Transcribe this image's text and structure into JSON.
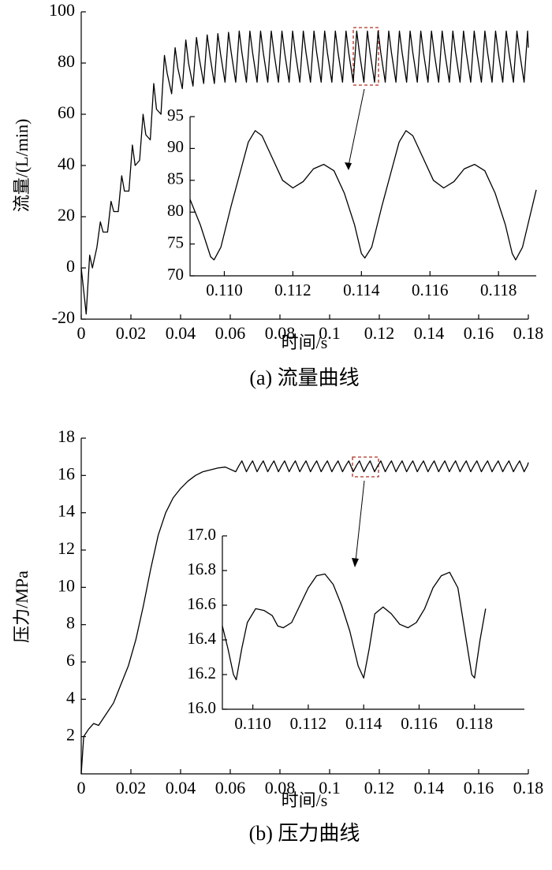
{
  "chart_data": [
    {
      "type": "line",
      "ylabel": "流量/(L/min)",
      "xlabel": "时间/s",
      "caption": "(a) 流量曲线",
      "color": "#000000",
      "xlim": [
        0,
        0.18
      ],
      "ylim": [
        -20,
        100
      ],
      "xticks": [
        0,
        0.02,
        0.04,
        0.06,
        0.08,
        0.1,
        0.12,
        0.14,
        0.16,
        0.18
      ],
      "yticks": [
        -20,
        0,
        20,
        40,
        60,
        80,
        100
      ],
      "x": [
        0,
        0.002,
        0.0034,
        0.0045,
        0.0063,
        0.0077,
        0.0088,
        0.0106,
        0.012,
        0.0131,
        0.0149,
        0.0163,
        0.0174,
        0.0192,
        0.0206,
        0.0217,
        0.0235,
        0.0249,
        0.026,
        0.0278,
        0.0292,
        0.0303,
        0.0321,
        0.0335,
        0.0346,
        0.0364,
        0.0378,
        0.0389,
        0.0407,
        0.0421,
        0.0432,
        0.045,
        0.0464,
        0.0475,
        0.0493,
        0.0507,
        0.0518,
        0.0536,
        0.055,
        0.0561,
        0.0579,
        0.0593,
        0.0604,
        0.0622,
        0.0636,
        0.0647,
        0.0665,
        0.0679,
        0.069,
        0.0708,
        0.0722,
        0.0733,
        0.0751,
        0.0765,
        0.0776,
        0.0794,
        0.0808,
        0.0819,
        0.0837,
        0.0851,
        0.0862,
        0.088,
        0.0894,
        0.0905,
        0.0923,
        0.0937,
        0.0948,
        0.0966,
        0.098,
        0.0991,
        0.1009,
        0.1023,
        0.1034,
        0.1052,
        0.1066,
        0.1077,
        0.1095,
        0.1109,
        0.112,
        0.1138,
        0.1152,
        0.1163,
        0.1181,
        0.1195,
        0.1206,
        0.1224,
        0.1238,
        0.1249,
        0.1267,
        0.1281,
        0.1292,
        0.131,
        0.1324,
        0.1335,
        0.1353,
        0.1367,
        0.1378,
        0.1396,
        0.141,
        0.1421,
        0.1439,
        0.1453,
        0.1464,
        0.1482,
        0.1496,
        0.1507,
        0.1525,
        0.1539,
        0.155,
        0.1568,
        0.1582,
        0.1593,
        0.1611,
        0.1625,
        0.1636,
        0.1654,
        0.1668,
        0.1679,
        0.1697,
        0.1711,
        0.1722,
        0.174,
        0.1754,
        0.1765,
        0.1783,
        0.1797,
        0.18
      ],
      "values": [
        0,
        -18,
        5,
        0,
        8,
        18,
        14,
        14,
        26,
        22,
        22,
        36,
        30,
        30,
        48,
        40,
        42,
        60,
        52,
        50,
        72,
        62,
        60,
        83,
        76,
        68,
        86,
        78,
        70,
        89,
        80,
        71,
        90,
        82,
        72,
        91,
        83,
        72,
        91.5,
        83.5,
        72.5,
        92,
        84,
        72.5,
        92.5,
        84,
        72.5,
        92.5,
        84,
        72.5,
        92.5,
        84,
        72.5,
        92.5,
        84,
        72.5,
        92.5,
        84,
        72.5,
        92.5,
        84,
        72.5,
        92.5,
        84,
        72.5,
        92.5,
        84,
        72.5,
        92.5,
        84,
        72.5,
        92.5,
        84,
        72.5,
        92.5,
        84,
        72.5,
        92.5,
        84,
        72.5,
        92.5,
        84,
        72.5,
        92.5,
        84,
        72.5,
        92.5,
        84,
        72.5,
        92.5,
        84,
        72.5,
        92.5,
        84,
        72.5,
        92.5,
        84,
        72.5,
        92.5,
        84,
        72.5,
        92.5,
        84,
        72.5,
        92.5,
        84,
        72.5,
        92.5,
        84,
        72.5,
        92.5,
        84,
        72.5,
        92.5,
        84,
        72.5,
        92.5,
        84,
        72.5,
        92.5,
        84,
        72.5,
        92.5,
        84,
        72.5,
        92.5,
        86
      ]
    },
    {
      "type": "line",
      "color": "#000000",
      "xlim": [
        0.109,
        0.1191
      ],
      "ylim": [
        70,
        95
      ],
      "xticks": [
        {
          "value": 0.11,
          "label": "0.110"
        },
        0.112,
        0.114,
        0.116,
        0.118
      ],
      "yticks": [
        70,
        75,
        80,
        85,
        90,
        95
      ],
      "x": [
        0.109,
        0.1093,
        0.1096,
        0.1097,
        0.1099,
        0.1102,
        0.1105,
        0.1107,
        0.1109,
        0.1111,
        0.1114,
        0.1117,
        0.112,
        0.1123,
        0.1126,
        0.1129,
        0.1132,
        0.1135,
        0.1138,
        0.114,
        0.1141,
        0.1143,
        0.1146,
        0.1149,
        0.1151,
        0.1153,
        0.1155,
        0.1158,
        0.1161,
        0.1164,
        0.1167,
        0.117,
        0.1173,
        0.1176,
        0.1179,
        0.1182,
        0.1184,
        0.1185,
        0.1187,
        0.1189,
        0.1191
      ],
      "values": [
        82,
        78,
        73,
        72.5,
        74.5,
        81,
        87,
        91,
        92.8,
        92,
        88.5,
        85,
        83.8,
        84.8,
        86.8,
        87.5,
        86.5,
        83,
        78,
        73.5,
        72.8,
        74.5,
        81,
        87,
        91,
        92.8,
        92,
        88.5,
        85,
        83.8,
        84.8,
        86.8,
        87.5,
        86.5,
        83,
        78,
        73.5,
        72.5,
        74.5,
        79,
        83.5
      ]
    },
    {
      "type": "line",
      "ylabel": "压力/MPa",
      "xlabel": "时间/s",
      "caption": "(b) 压力曲线",
      "color": "#000000",
      "xlim": [
        0,
        0.18
      ],
      "ylim": [
        0,
        18
      ],
      "xticks": [
        0,
        0.02,
        0.04,
        0.06,
        0.08,
        0.1,
        0.12,
        0.14,
        0.16,
        0.18
      ],
      "yticks": [
        2,
        4,
        6,
        8,
        10,
        12,
        14,
        16,
        18
      ],
      "x": [
        0,
        0.001,
        0.003,
        0.005,
        0.007,
        0.01,
        0.013,
        0.016,
        0.019,
        0.022,
        0.025,
        0.028,
        0.031,
        0.034,
        0.037,
        0.04,
        0.043,
        0.046,
        0.049,
        0.052,
        0.055,
        0.058,
        0.0622,
        0.0636,
        0.0647,
        0.0665,
        0.0679,
        0.069,
        0.0708,
        0.0722,
        0.0733,
        0.0751,
        0.0765,
        0.0776,
        0.0794,
        0.0808,
        0.0819,
        0.0837,
        0.0851,
        0.0862,
        0.088,
        0.0894,
        0.0905,
        0.0923,
        0.0937,
        0.0948,
        0.0966,
        0.098,
        0.0991,
        0.1009,
        0.1023,
        0.1034,
        0.1052,
        0.1066,
        0.1077,
        0.1095,
        0.1109,
        0.112,
        0.1138,
        0.1152,
        0.1163,
        0.1181,
        0.1195,
        0.1206,
        0.1224,
        0.1238,
        0.1249,
        0.1267,
        0.1281,
        0.1292,
        0.131,
        0.1324,
        0.1335,
        0.1353,
        0.1367,
        0.1378,
        0.1396,
        0.141,
        0.1421,
        0.1439,
        0.1453,
        0.1464,
        0.1482,
        0.1496,
        0.1507,
        0.1525,
        0.1539,
        0.155,
        0.1568,
        0.1582,
        0.1593,
        0.1611,
        0.1625,
        0.1636,
        0.1654,
        0.1668,
        0.1679,
        0.1697,
        0.1711,
        0.1722,
        0.174,
        0.1754,
        0.1765,
        0.1783,
        0.1797,
        0.18
      ],
      "values": [
        0,
        2.0,
        2.4,
        2.7,
        2.6,
        3.2,
        3.8,
        4.8,
        5.8,
        7.2,
        9.0,
        11.0,
        12.8,
        14.0,
        14.8,
        15.3,
        15.7,
        16.0,
        16.2,
        16.3,
        16.4,
        16.45,
        16.2,
        16.55,
        16.78,
        16.2,
        16.55,
        16.78,
        16.2,
        16.55,
        16.78,
        16.2,
        16.55,
        16.78,
        16.2,
        16.55,
        16.78,
        16.2,
        16.55,
        16.78,
        16.2,
        16.55,
        16.78,
        16.2,
        16.55,
        16.78,
        16.2,
        16.55,
        16.78,
        16.2,
        16.55,
        16.78,
        16.2,
        16.55,
        16.78,
        16.2,
        16.55,
        16.78,
        16.2,
        16.55,
        16.78,
        16.2,
        16.55,
        16.78,
        16.2,
        16.55,
        16.78,
        16.2,
        16.55,
        16.78,
        16.2,
        16.55,
        16.78,
        16.2,
        16.55,
        16.78,
        16.2,
        16.55,
        16.78,
        16.2,
        16.55,
        16.78,
        16.2,
        16.55,
        16.78,
        16.2,
        16.55,
        16.78,
        16.2,
        16.55,
        16.78,
        16.2,
        16.55,
        16.78,
        16.2,
        16.55,
        16.78,
        16.2,
        16.55,
        16.78,
        16.2,
        16.55,
        16.78,
        16.2,
        16.55,
        16.7
      ]
    },
    {
      "type": "line",
      "color": "#000000",
      "xlim": [
        0.1089,
        0.1198
      ],
      "ylim": [
        16,
        17
      ],
      "xticks": [
        {
          "value": 0.11,
          "label": "0.110"
        },
        0.112,
        0.114,
        0.116,
        0.118
      ],
      "yticks": [
        {
          "value": 16,
          "label": "16.0"
        },
        16.2,
        16.4,
        16.6,
        16.8,
        {
          "value": 17,
          "label": "17.0"
        }
      ],
      "x": [
        0.1089,
        0.1091,
        0.1093,
        0.1094,
        0.1096,
        0.1098,
        0.1101,
        0.1104,
        0.1107,
        0.1109,
        0.1111,
        0.1114,
        0.1117,
        0.112,
        0.1123,
        0.1126,
        0.1129,
        0.1132,
        0.1135,
        0.1138,
        0.114,
        0.1142,
        0.1144,
        0.1147,
        0.115,
        0.1153,
        0.1156,
        0.1159,
        0.1162,
        0.1165,
        0.1168,
        0.1171,
        0.1174,
        0.1176,
        0.1178,
        0.1179,
        0.118,
        0.1182,
        0.1184
      ],
      "values": [
        16.48,
        16.35,
        16.2,
        16.17,
        16.35,
        16.5,
        16.58,
        16.57,
        16.54,
        16.48,
        16.47,
        16.5,
        16.6,
        16.7,
        16.77,
        16.78,
        16.72,
        16.6,
        16.45,
        16.25,
        16.18,
        16.35,
        16.55,
        16.59,
        16.55,
        16.49,
        16.47,
        16.5,
        16.58,
        16.7,
        16.77,
        16.79,
        16.7,
        16.5,
        16.3,
        16.2,
        16.18,
        16.4,
        16.58
      ]
    }
  ]
}
